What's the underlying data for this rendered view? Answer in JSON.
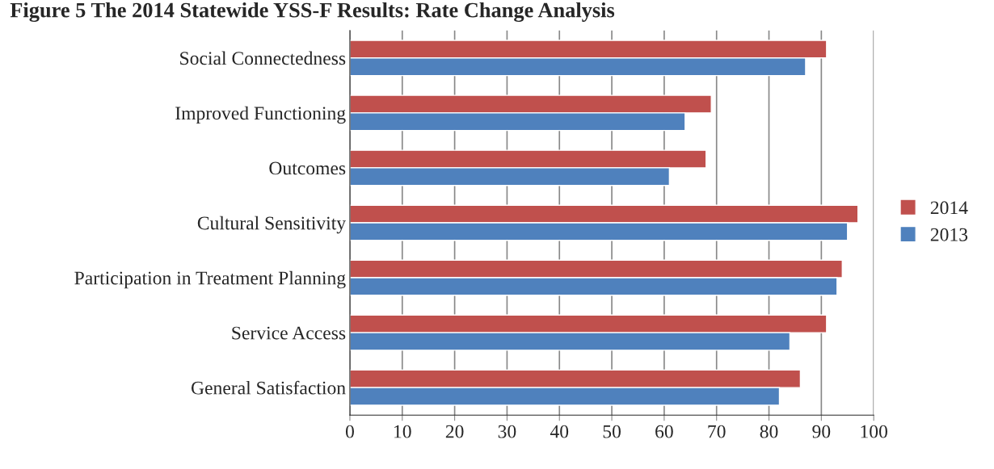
{
  "chart_data": {
    "type": "bar",
    "orientation": "horizontal",
    "title": "Figure 5 The 2014 Statewide YSS-F Results: Rate Change Analysis",
    "categories": [
      "Social Connectedness",
      "Improved Functioning",
      "Outcomes",
      "Cultural Sensitivity",
      "Participation in Treatment Planning",
      "Service Access",
      "General Satisfaction"
    ],
    "series": [
      {
        "name": "2014",
        "color": "#c0504d",
        "values": [
          91,
          69,
          68,
          97,
          94,
          91,
          86
        ]
      },
      {
        "name": "2013",
        "color": "#4f81bd",
        "values": [
          87,
          64,
          61,
          95,
          93,
          84,
          82
        ]
      }
    ],
    "xlim": [
      0,
      100
    ],
    "xticks": [
      0,
      10,
      20,
      30,
      40,
      50,
      60,
      70,
      80,
      90,
      100
    ],
    "grid": "x",
    "legend": "right"
  }
}
